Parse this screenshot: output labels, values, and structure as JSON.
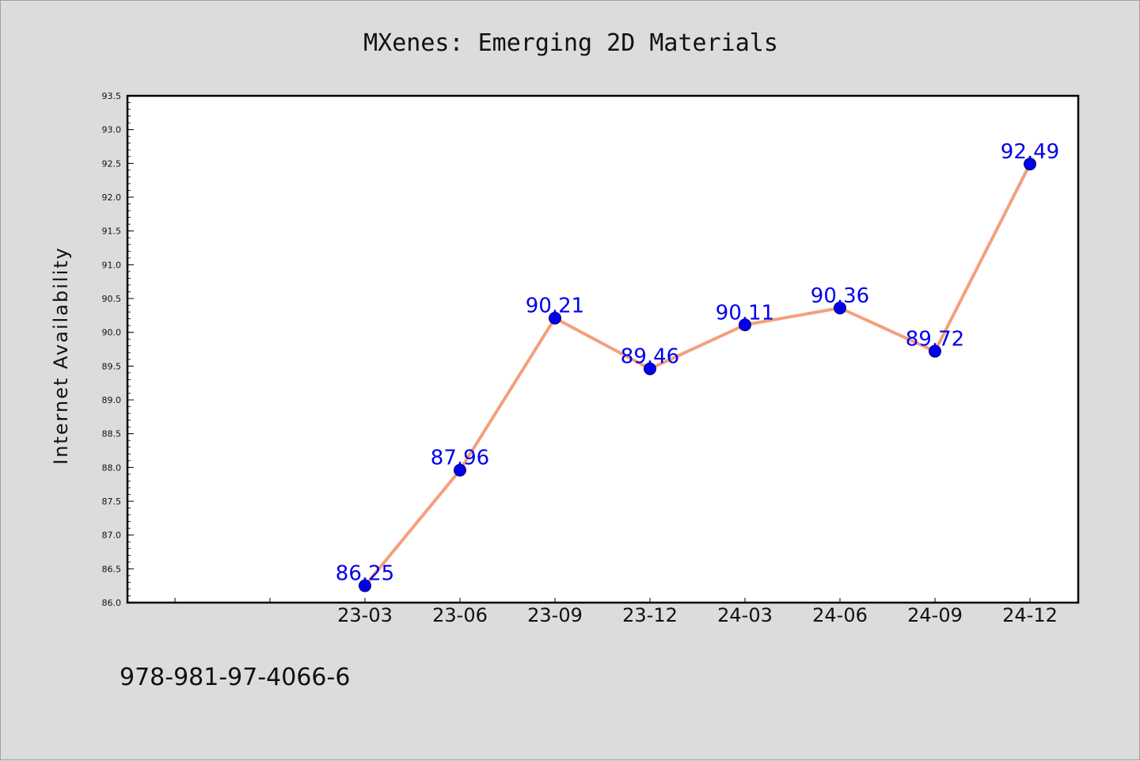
{
  "chart_data": {
    "type": "line",
    "title": "MXenes: Emerging 2D Materials",
    "xlabel": "",
    "ylabel": "Internet Availability",
    "categories": [
      "23-03",
      "23-06",
      "23-09",
      "23-12",
      "24-03",
      "24-06",
      "24-09",
      "24-12"
    ],
    "series": [
      {
        "values": [
          86.25,
          87.96,
          90.21,
          89.46,
          90.11,
          90.36,
          89.72,
          92.49
        ],
        "labels": [
          "86.25",
          "87.96",
          "90.21",
          "89.46",
          "90.11",
          "90.36",
          "89.72",
          "92.49"
        ]
      }
    ],
    "ylim": [
      86.0,
      93.5
    ],
    "yticks": [
      "86.0",
      "86.5",
      "87.0",
      "87.5",
      "88.0",
      "88.5",
      "89.0",
      "89.5",
      "90.0",
      "90.5",
      "91.0",
      "91.5",
      "92.0",
      "92.5",
      "93.0",
      "93.5"
    ],
    "grid": false,
    "colors": {
      "line": "#f4a07c",
      "marker": "#0000ee",
      "label": "#0000ee"
    }
  },
  "footer": {
    "isbn": "978-981-97-4066-6"
  }
}
